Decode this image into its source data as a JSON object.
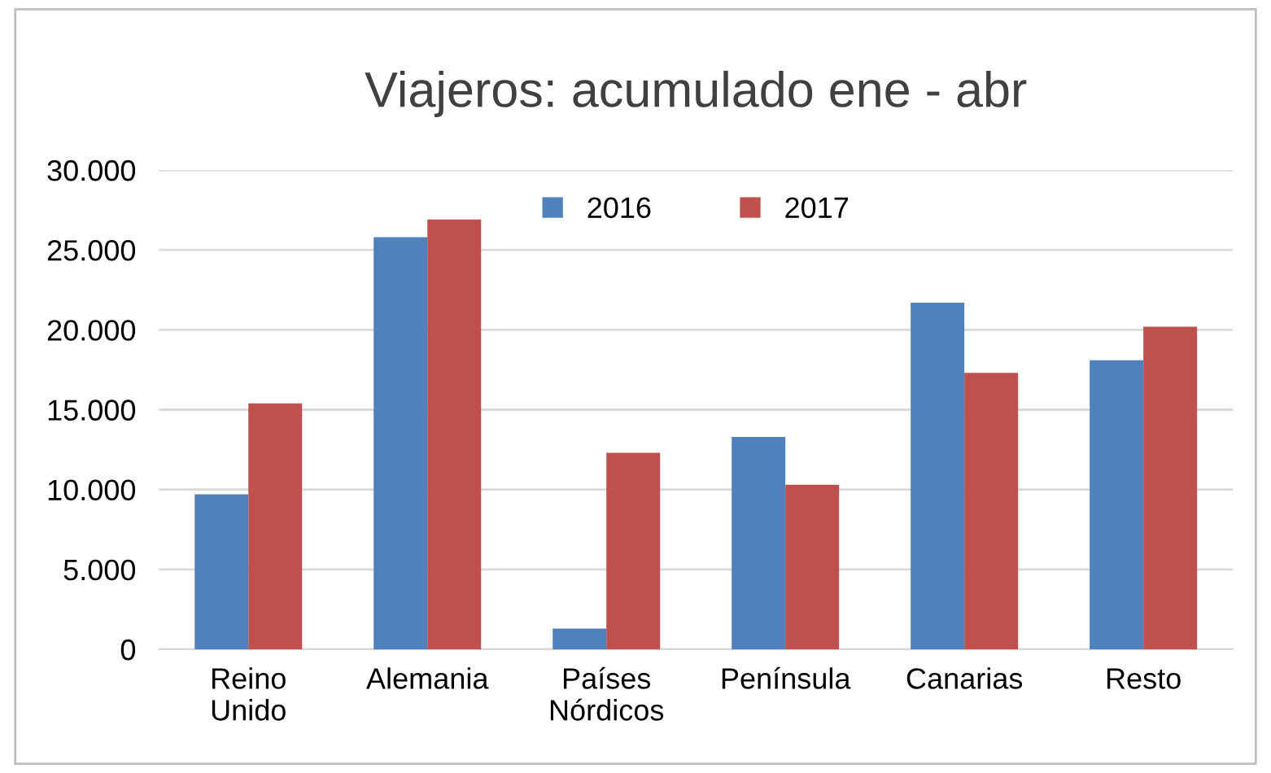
{
  "chart_data": {
    "type": "bar",
    "title": "Viajeros: acumulado ene - abr",
    "categories": [
      "Reino\nUnido",
      "Alemania",
      "Países\nNórdicos",
      "Península",
      "Canarias",
      "Resto"
    ],
    "series": [
      {
        "name": "2016",
        "color": "#4f81bd",
        "values": [
          9700,
          25800,
          1300,
          13300,
          21700,
          18100
        ]
      },
      {
        "name": "2017",
        "color": "#c0504d",
        "values": [
          15400,
          26900,
          12300,
          10300,
          17300,
          20200
        ]
      }
    ],
    "ylim": [
      0,
      30000
    ],
    "yticks": [
      0,
      {
        "value": 5000,
        "label": "5.000"
      },
      {
        "value": 10000,
        "label": "10.000"
      },
      {
        "value": 15000,
        "label": "15.000"
      },
      {
        "value": 20000,
        "label": "20.000"
      },
      {
        "value": 25000,
        "label": "25.000"
      },
      {
        "value": 30000,
        "label": "30.000"
      }
    ],
    "grid": "y",
    "legend": "top"
  }
}
